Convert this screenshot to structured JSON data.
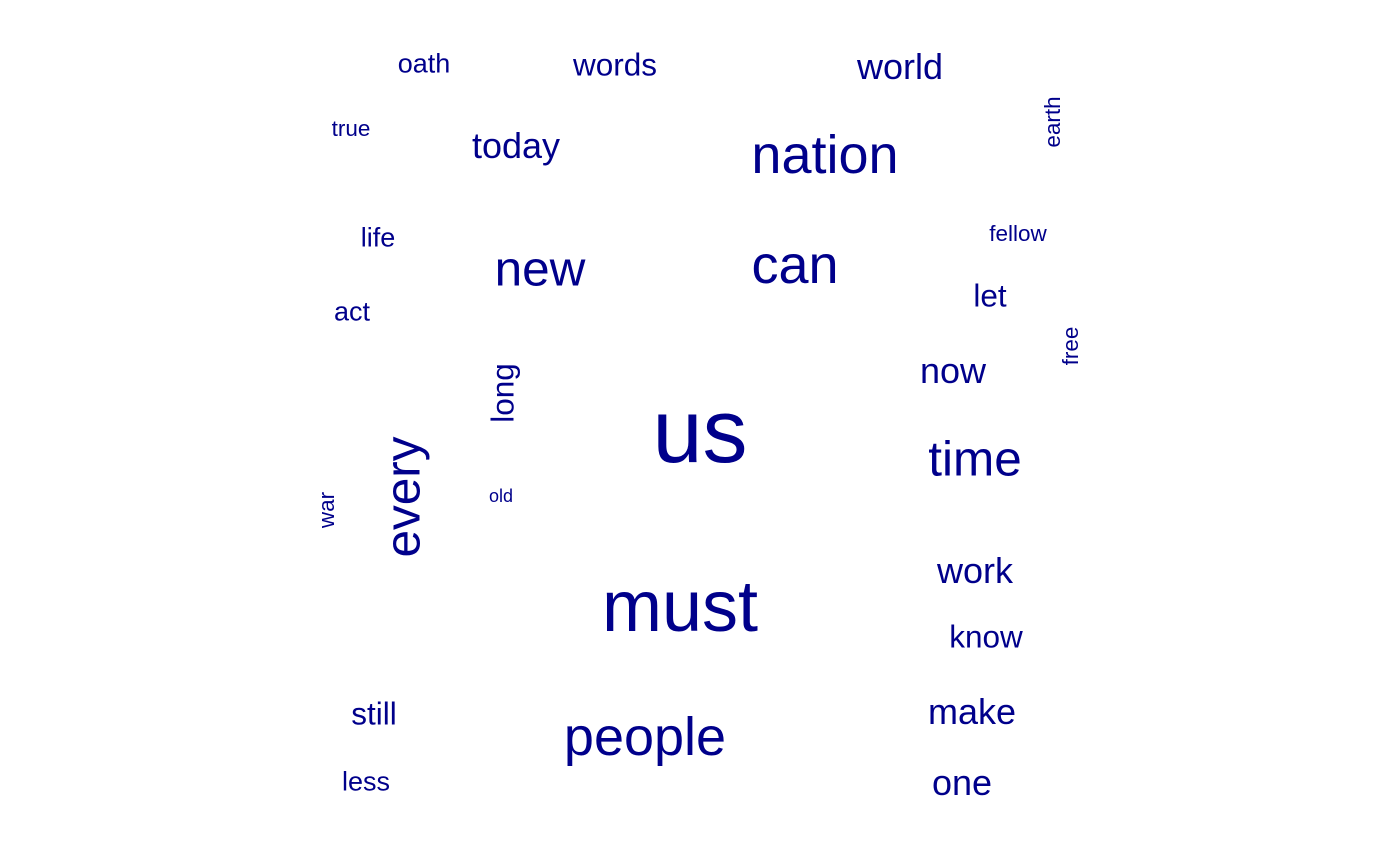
{
  "chart_data": {
    "type": "wordcloud",
    "color": "#00008B",
    "words": [
      {
        "text": "us",
        "weight": 10,
        "orientation": "horizontal"
      },
      {
        "text": "must",
        "weight": 8,
        "orientation": "horizontal"
      },
      {
        "text": "people",
        "weight": 6,
        "orientation": "horizontal"
      },
      {
        "text": "nation",
        "weight": 6,
        "orientation": "horizontal"
      },
      {
        "text": "can",
        "weight": 6,
        "orientation": "horizontal"
      },
      {
        "text": "every",
        "weight": 5.5,
        "orientation": "vertical"
      },
      {
        "text": "new",
        "weight": 5.5,
        "orientation": "horizontal"
      },
      {
        "text": "time",
        "weight": 5.5,
        "orientation": "horizontal"
      },
      {
        "text": "today",
        "weight": 4,
        "orientation": "horizontal"
      },
      {
        "text": "work",
        "weight": 4,
        "orientation": "horizontal"
      },
      {
        "text": "now",
        "weight": 4,
        "orientation": "horizontal"
      },
      {
        "text": "make",
        "weight": 4,
        "orientation": "horizontal"
      },
      {
        "text": "world",
        "weight": 4,
        "orientation": "horizontal"
      },
      {
        "text": "one",
        "weight": 4,
        "orientation": "horizontal"
      },
      {
        "text": "long",
        "weight": 3.5,
        "orientation": "vertical"
      },
      {
        "text": "words",
        "weight": 3.5,
        "orientation": "horizontal"
      },
      {
        "text": "know",
        "weight": 3.5,
        "orientation": "horizontal"
      },
      {
        "text": "let",
        "weight": 3.5,
        "orientation": "horizontal"
      },
      {
        "text": "still",
        "weight": 3.5,
        "orientation": "horizontal"
      },
      {
        "text": "oath",
        "weight": 3,
        "orientation": "horizontal"
      },
      {
        "text": "less",
        "weight": 3,
        "orientation": "horizontal"
      },
      {
        "text": "life",
        "weight": 3,
        "orientation": "horizontal"
      },
      {
        "text": "act",
        "weight": 3,
        "orientation": "horizontal"
      },
      {
        "text": "earth",
        "weight": 2.5,
        "orientation": "vertical"
      },
      {
        "text": "war",
        "weight": 2.5,
        "orientation": "vertical"
      },
      {
        "text": "free",
        "weight": 2.5,
        "orientation": "vertical"
      },
      {
        "text": "fellow",
        "weight": 2.5,
        "orientation": "horizontal"
      },
      {
        "text": "true",
        "weight": 2.5,
        "orientation": "horizontal"
      },
      {
        "text": "old",
        "weight": 2,
        "orientation": "horizontal"
      }
    ]
  }
}
